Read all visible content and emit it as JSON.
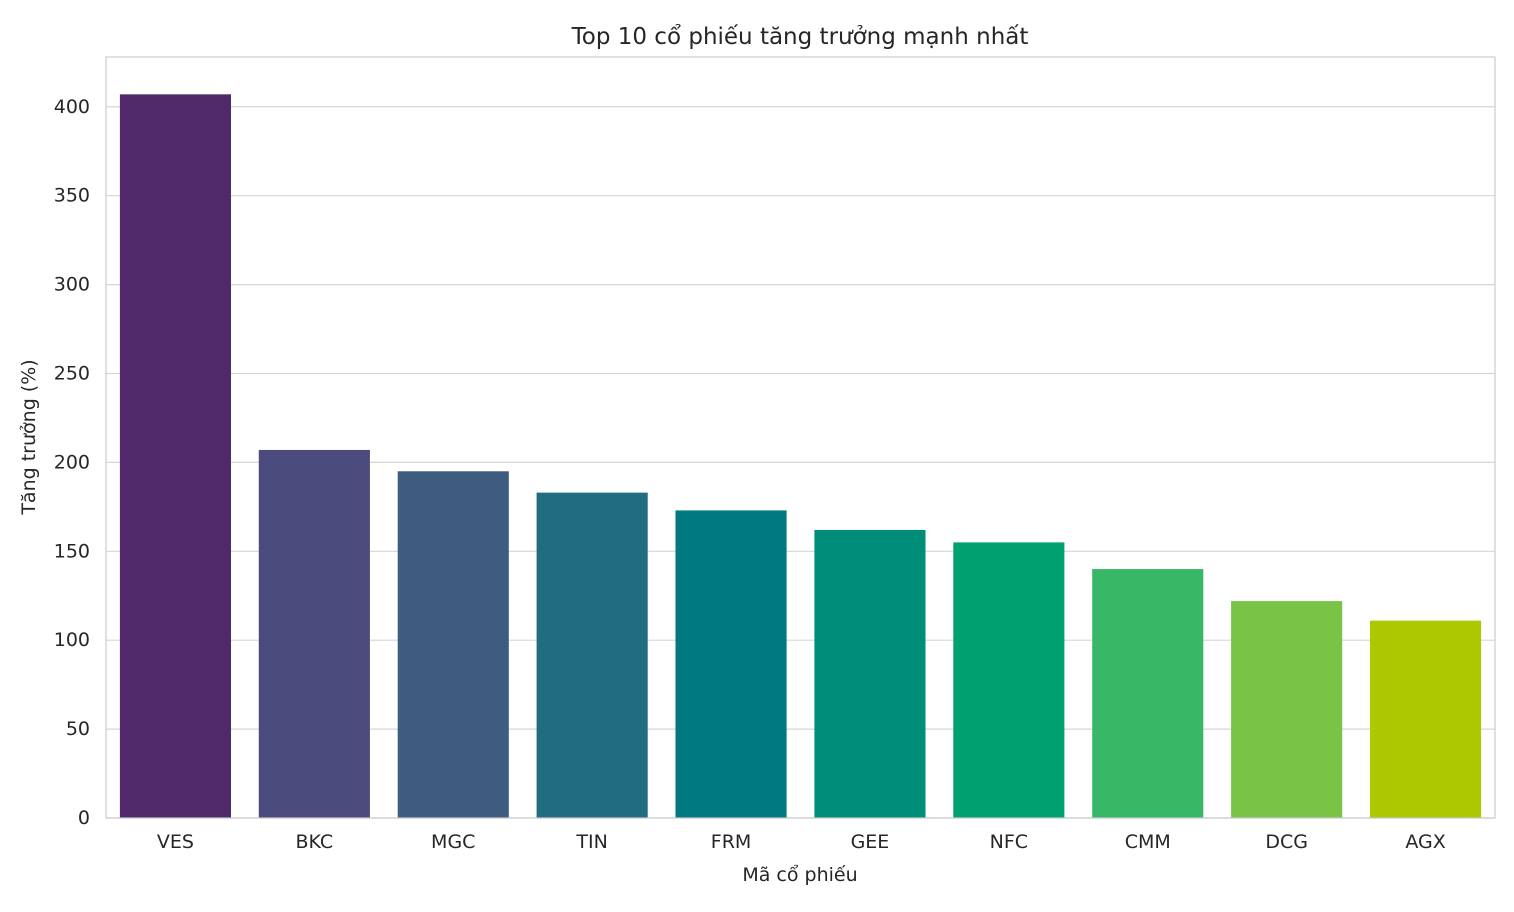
{
  "chart_data": {
    "type": "bar",
    "title": "Top 10 cổ phiếu tăng trưởng mạnh nhất",
    "xlabel": "Mã cổ phiếu",
    "ylabel": "Tăng trưởng (%)",
    "categories": [
      "VES",
      "BKC",
      "MGC",
      "TIN",
      "FRM",
      "GEE",
      "NFC",
      "CMM",
      "DCG",
      "AGX"
    ],
    "values": [
      407,
      207,
      195,
      183,
      173,
      162,
      155,
      140,
      122,
      111
    ],
    "colors": [
      "#50296b",
      "#4a4a7d",
      "#3d5c80",
      "#226c80",
      "#007a80",
      "#008e7b",
      "#00a070",
      "#38b866",
      "#79c447",
      "#abc800"
    ],
    "ylim": [
      0,
      428
    ],
    "yticks": [
      0,
      50,
      100,
      150,
      200,
      250,
      300,
      350,
      400
    ],
    "grid": true,
    "grid_axis": "y"
  }
}
